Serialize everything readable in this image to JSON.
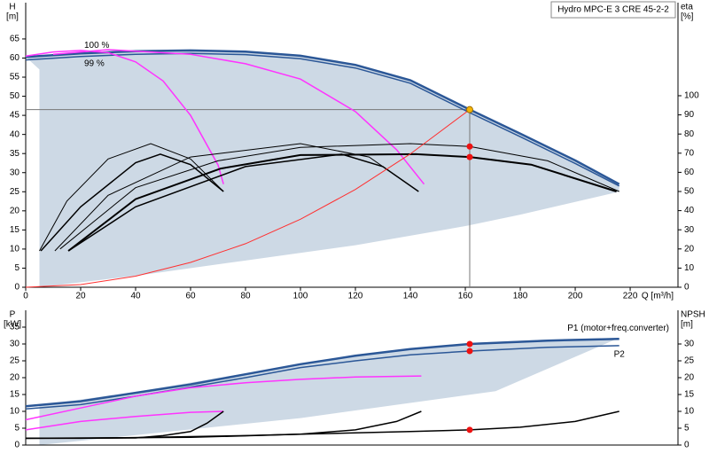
{
  "chart_data": [
    {
      "type": "line",
      "title": "Hydro MPC-E 3 CRE 45-2-2",
      "ylabel": "H",
      "yunit": "[m]",
      "y2label": "eta",
      "y2unit": "[%]",
      "xlabel": "Q [m³/h]",
      "xlim": [
        0,
        237.4
      ],
      "xticks": [
        0,
        20,
        40,
        60,
        80,
        100,
        120,
        140,
        160,
        180,
        200,
        220
      ],
      "ylim": [
        0,
        74.5
      ],
      "yticks": [
        0,
        5,
        10,
        15,
        20,
        25,
        30,
        35,
        40,
        45,
        50,
        55,
        60,
        65
      ],
      "y2lim": [
        0,
        148.6
      ],
      "y2ticks": [
        0,
        10,
        20,
        30,
        40,
        50,
        60,
        70,
        80,
        90,
        100
      ],
      "grid": false,
      "series_label_position": "start",
      "area_color": "#cdd9e5",
      "area": {
        "x": [
          0,
          20,
          40,
          60,
          80,
          100,
          120,
          140,
          161.6,
          180,
          200,
          216,
          216,
          180,
          160,
          120,
          80,
          40,
          5,
          5
        ],
        "values": [
          60.3,
          61.2,
          61.8,
          62,
          61.7,
          60.6,
          58.2,
          54.2,
          46.5,
          40.2,
          33.2,
          27,
          25,
          19,
          16,
          11,
          7,
          3,
          0,
          57
        ]
      },
      "series": [
        {
          "name": "100 %",
          "color": "#2b5797",
          "width": 2.5,
          "x": [
            0,
            20,
            40,
            60,
            80,
            100,
            120,
            140,
            161.6,
            180,
            200,
            216
          ],
          "values": [
            60.3,
            61.2,
            61.8,
            62,
            61.7,
            60.6,
            58.2,
            54.2,
            46.5,
            40.2,
            33.2,
            27
          ]
        },
        {
          "name": "99 %",
          "color": "#2b5797",
          "width": 1.5,
          "x": [
            0,
            20,
            40,
            60,
            80,
            100,
            120,
            140,
            161.6,
            180,
            200,
            216
          ],
          "values": [
            59.5,
            60.4,
            61,
            61.2,
            60.9,
            59.8,
            57.4,
            53.4,
            45.7,
            39.4,
            32.4,
            26.5
          ]
        },
        {
          "color": "#ff33ff",
          "width": 1.5,
          "x": [
            0,
            10,
            20,
            30,
            40,
            50,
            60,
            70,
            72
          ],
          "values": [
            60.5,
            61.6,
            62,
            61.4,
            59,
            54,
            45,
            32,
            27
          ]
        },
        {
          "color": "#ff33ff",
          "width": 1.5,
          "x": [
            10,
            30,
            60,
            80,
            100,
            120,
            135,
            145
          ],
          "values": [
            61,
            62.2,
            61,
            58.5,
            54.5,
            46,
            36,
            27
          ]
        },
        {
          "color": "#000000",
          "width": 2,
          "axis": "y2",
          "x": [
            15.5,
            40,
            71,
            100,
            142,
            161.6,
            184,
            215
          ],
          "values": [
            19,
            46,
            62,
            69,
            69.5,
            68,
            64,
            50
          ]
        },
        {
          "color": "#000000",
          "width": 1,
          "axis": "y2",
          "x": [
            12.5,
            40,
            70,
            100,
            140,
            161.6,
            190,
            216
          ],
          "values": [
            20,
            52,
            66,
            73,
            75,
            73.5,
            66,
            50
          ]
        },
        {
          "color": "#000000",
          "width": 1,
          "axis": "y2",
          "x": [
            5,
            15,
            30,
            45.5,
            60,
            72
          ],
          "values": [
            19,
            45,
            67,
            75,
            67,
            50
          ]
        },
        {
          "color": "#000000",
          "width": 1.5,
          "axis": "y2",
          "x": [
            5.5,
            20,
            40,
            49,
            60,
            72
          ],
          "values": [
            19,
            42,
            65,
            69.5,
            64,
            50
          ]
        },
        {
          "color": "#000000",
          "width": 1,
          "axis": "y2",
          "x": [
            10.6,
            30,
            60,
            100,
            125,
            143
          ],
          "values": [
            19,
            48,
            68,
            75,
            68,
            50
          ]
        },
        {
          "color": "#000000",
          "width": 1.5,
          "axis": "y2",
          "x": [
            15.5,
            40,
            80,
            115,
            130,
            143
          ],
          "values": [
            19,
            42,
            63,
            69.5,
            63,
            50
          ]
        },
        {
          "color": "#ff3030",
          "width": 1,
          "x": [
            0,
            20,
            40,
            60,
            80,
            100,
            120,
            140,
            161.6
          ],
          "values": [
            0,
            0.7,
            2.9,
            6.5,
            11.4,
            17.8,
            25.6,
            34.9,
            46.5
          ]
        }
      ],
      "markers": [
        {
          "x": 161.6,
          "y": 46.5,
          "color": "#f5b400",
          "crosshair": true
        },
        {
          "x": 161.6,
          "y": 73.5,
          "axis": "y2",
          "color": "#ee1111"
        },
        {
          "x": 161.6,
          "y": 68,
          "axis": "y2",
          "color": "#ee1111"
        }
      ]
    },
    {
      "type": "line",
      "ylabel": "P",
      "yunit": "[kW]",
      "y2label": "NPSH",
      "y2unit": "[m]",
      "xlim": [
        0,
        237.4
      ],
      "ylim": [
        0,
        40
      ],
      "yticks": [
        0,
        5,
        10,
        15,
        20,
        25,
        30,
        35
      ],
      "y2lim": [
        0,
        40
      ],
      "y2ticks": [
        0,
        5,
        10,
        15,
        20,
        25,
        30
      ],
      "grid": false,
      "series_label_position": "end",
      "area_color": "#cdd9e5",
      "area": {
        "x": [
          5,
          40,
          80,
          120,
          161.6,
          190,
          216,
          171,
          100,
          5
        ],
        "values": [
          11.8,
          15.8,
          21.3,
          26.8,
          30.3,
          31.3,
          31.8,
          16,
          8,
          0
        ]
      },
      "series": [
        {
          "name": "P1 (motor+freq.converter)",
          "color": "#2b5797",
          "width": 2.5,
          "x": [
            0,
            20,
            40,
            60,
            80,
            100,
            120,
            140,
            161.6,
            190,
            216
          ],
          "values": [
            11.5,
            13,
            15.5,
            18,
            21,
            24,
            26.5,
            28.5,
            30,
            31,
            31.5
          ]
        },
        {
          "name": "P2",
          "color": "#2b5797",
          "width": 1.5,
          "x": [
            0,
            20,
            40,
            60,
            80,
            100,
            120,
            140,
            161.6,
            190,
            216
          ],
          "values": [
            10.7,
            12,
            14.5,
            17.2,
            20,
            23,
            25,
            26.8,
            27.9,
            29,
            29.5
          ]
        },
        {
          "color": "#ff33ff",
          "width": 1.5,
          "x": [
            0,
            20,
            40,
            60,
            80,
            100,
            120,
            144
          ],
          "values": [
            7.5,
            11,
            14.5,
            17,
            18.5,
            19.5,
            20.2,
            20.5
          ]
        },
        {
          "color": "#ff33ff",
          "width": 1.5,
          "x": [
            0,
            20,
            40,
            60,
            72
          ],
          "values": [
            4.5,
            7,
            8.5,
            9.7,
            10
          ]
        },
        {
          "color": "#000000",
          "width": 1.5,
          "axis": "y2",
          "x": [
            0,
            20,
            40,
            60,
            80,
            100,
            120,
            140,
            161.6,
            180,
            200,
            216
          ],
          "values": [
            2,
            2,
            2.2,
            2.5,
            2.8,
            3.2,
            3.6,
            4,
            4.5,
            5.3,
            7,
            10
          ]
        },
        {
          "color": "#000000",
          "width": 1.5,
          "axis": "y2",
          "x": [
            0,
            40,
            50,
            60,
            66,
            72
          ],
          "values": [
            2,
            2.1,
            2.8,
            4,
            6.5,
            10
          ]
        },
        {
          "color": "#000000",
          "width": 1.5,
          "axis": "y2",
          "x": [
            0,
            60,
            100,
            120,
            135,
            144
          ],
          "values": [
            2,
            2.3,
            3.2,
            4.5,
            7,
            10
          ]
        }
      ],
      "markers": [
        {
          "x": 161.6,
          "y": 30,
          "color": "#ee1111"
        },
        {
          "x": 161.6,
          "y": 27.9,
          "color": "#ee1111"
        },
        {
          "x": 161.6,
          "y": 4.5,
          "axis": "y2",
          "color": "#ee1111"
        }
      ]
    }
  ]
}
